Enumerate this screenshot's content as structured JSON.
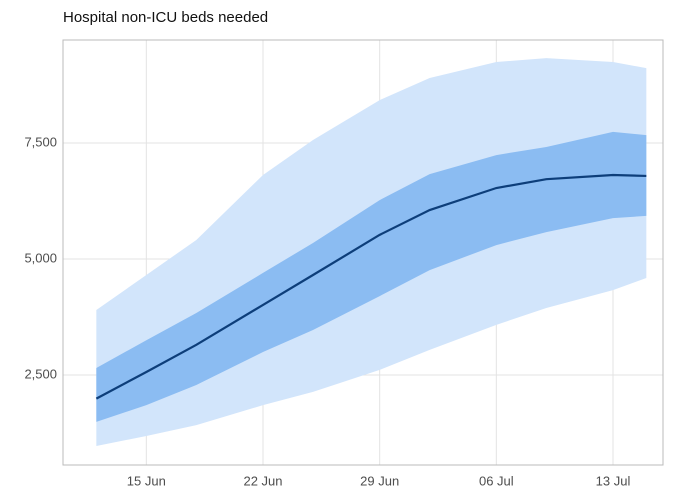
{
  "chart_data": {
    "type": "line",
    "title": "Hospital non-ICU beds needed",
    "x": [
      "12 Jun",
      "15 Jun",
      "18 Jun",
      "22 Jun",
      "25 Jun",
      "29 Jun",
      "02 Jul",
      "06 Jul",
      "09 Jul",
      "13 Jul",
      "15 Jul"
    ],
    "series": [
      {
        "color": "#0d3e7a",
        "values": [
          1990,
          2565,
          3150,
          4010,
          4655,
          5520,
          6055,
          6530,
          6720,
          6810,
          6790
        ]
      }
    ],
    "bands": [
      {
        "color": "#d2e5fb",
        "lower": [
          970,
          1185,
          1420,
          1850,
          2135,
          2610,
          3040,
          3580,
          3945,
          4330,
          4590
        ],
        "upper": [
          3900,
          4655,
          5410,
          6810,
          7565,
          8425,
          8900,
          9245,
          9330,
          9245,
          9115
        ]
      },
      {
        "color": "#8bbcf2",
        "lower": [
          1490,
          1850,
          2285,
          2995,
          3470,
          4200,
          4760,
          5300,
          5580,
          5880,
          5930
        ],
        "upper": [
          2650,
          3250,
          3835,
          4700,
          5345,
          6270,
          6830,
          7240,
          7415,
          7740,
          7670
        ]
      }
    ],
    "xlim": [
      "10 Jun",
      "16 Jul"
    ],
    "xticks": [
      "15 Jun",
      "22 Jun",
      "29 Jun",
      "06 Jul",
      "13 Jul"
    ],
    "ylim": [
      560,
      9720
    ],
    "yticks": [
      {
        "value": 2500,
        "label": "2,500"
      },
      {
        "value": 5000,
        "label": "5,000"
      },
      {
        "value": 7500,
        "label": "7,500"
      }
    ],
    "grid": true
  }
}
